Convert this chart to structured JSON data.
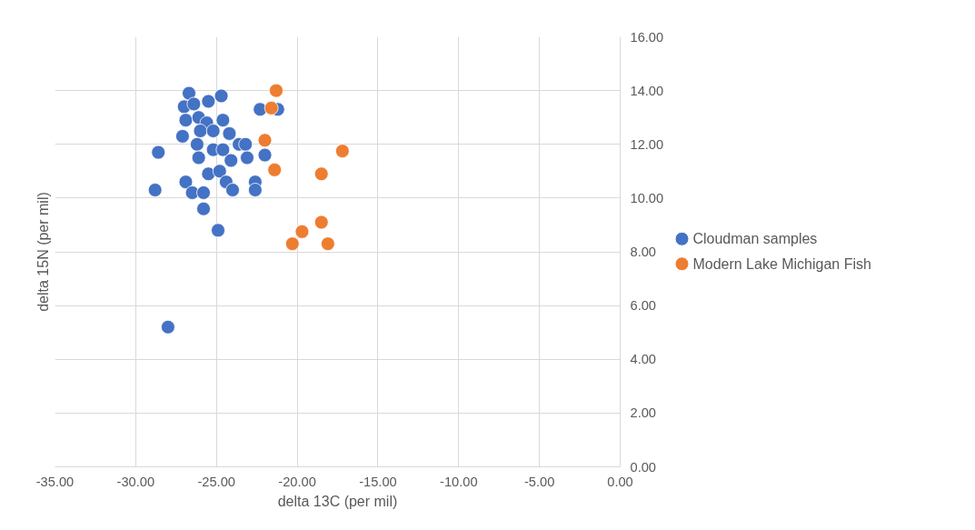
{
  "chart_data": {
    "type": "scatter",
    "xlabel": "delta 13C (per mil)",
    "ylabel": "delta 15N (per mil)",
    "xlim": [
      -35,
      0
    ],
    "ylim": [
      0,
      16
    ],
    "xticks": [
      {
        "value": -35,
        "label": "-35.00"
      },
      {
        "value": -30,
        "label": "-30.00"
      },
      {
        "value": -25,
        "label": "-25.00"
      },
      {
        "value": -20,
        "label": "-20.00"
      },
      {
        "value": -15,
        "label": "-15.00"
      },
      {
        "value": -10,
        "label": "-10.00"
      },
      {
        "value": -5,
        "label": "-5.00"
      },
      {
        "value": 0,
        "label": "0.00"
      }
    ],
    "yticks": [
      {
        "value": 0,
        "label": "0.00"
      },
      {
        "value": 2,
        "label": "2.00"
      },
      {
        "value": 4,
        "label": "4.00"
      },
      {
        "value": 6,
        "label": "6.00"
      },
      {
        "value": 8,
        "label": "8.00"
      },
      {
        "value": 10,
        "label": "10.00"
      },
      {
        "value": 12,
        "label": "12.00"
      },
      {
        "value": 14,
        "label": "14.00"
      },
      {
        "value": 16,
        "label": "16.00"
      }
    ],
    "grid": true,
    "legend": "right",
    "marker": "circle",
    "series": [
      {
        "name": "Cloudman samples",
        "color": "#4472c4",
        "x": [
          -26.7,
          -25.5,
          -24.7,
          -27.0,
          -26.4,
          -26.9,
          -26.1,
          -25.6,
          -24.6,
          -27.1,
          -26.0,
          -25.2,
          -24.2,
          -26.2,
          -25.2,
          -24.6,
          -23.6,
          -23.2,
          -28.6,
          -26.1,
          -24.1,
          -23.1,
          -22.0,
          -25.5,
          -24.8,
          -26.9,
          -24.4,
          -24.0,
          -26.5,
          -25.8,
          -22.6,
          -22.6,
          -28.8,
          -25.8,
          -24.9,
          -22.3,
          -21.2,
          -28.0
        ],
        "values": [
          13.9,
          13.6,
          13.8,
          13.4,
          13.5,
          12.9,
          13.0,
          12.8,
          12.9,
          12.3,
          12.5,
          12.5,
          12.4,
          12.0,
          11.8,
          11.8,
          12.0,
          12.0,
          11.7,
          11.5,
          11.4,
          11.5,
          11.6,
          10.9,
          11.0,
          10.6,
          10.6,
          10.3,
          10.2,
          10.2,
          10.6,
          10.3,
          10.3,
          9.6,
          8.8,
          13.3,
          13.3,
          5.2
        ]
      },
      {
        "name": "Modern Lake Michigan Fish",
        "color": "#ed7d31",
        "x": [
          -21.3,
          -21.6,
          -22.0,
          -21.4,
          -17.2,
          -18.5,
          -18.5,
          -19.7,
          -20.3,
          -18.1
        ],
        "values": [
          14.0,
          13.35,
          12.15,
          11.05,
          11.75,
          10.9,
          9.1,
          8.75,
          8.3,
          8.3
        ]
      }
    ]
  }
}
